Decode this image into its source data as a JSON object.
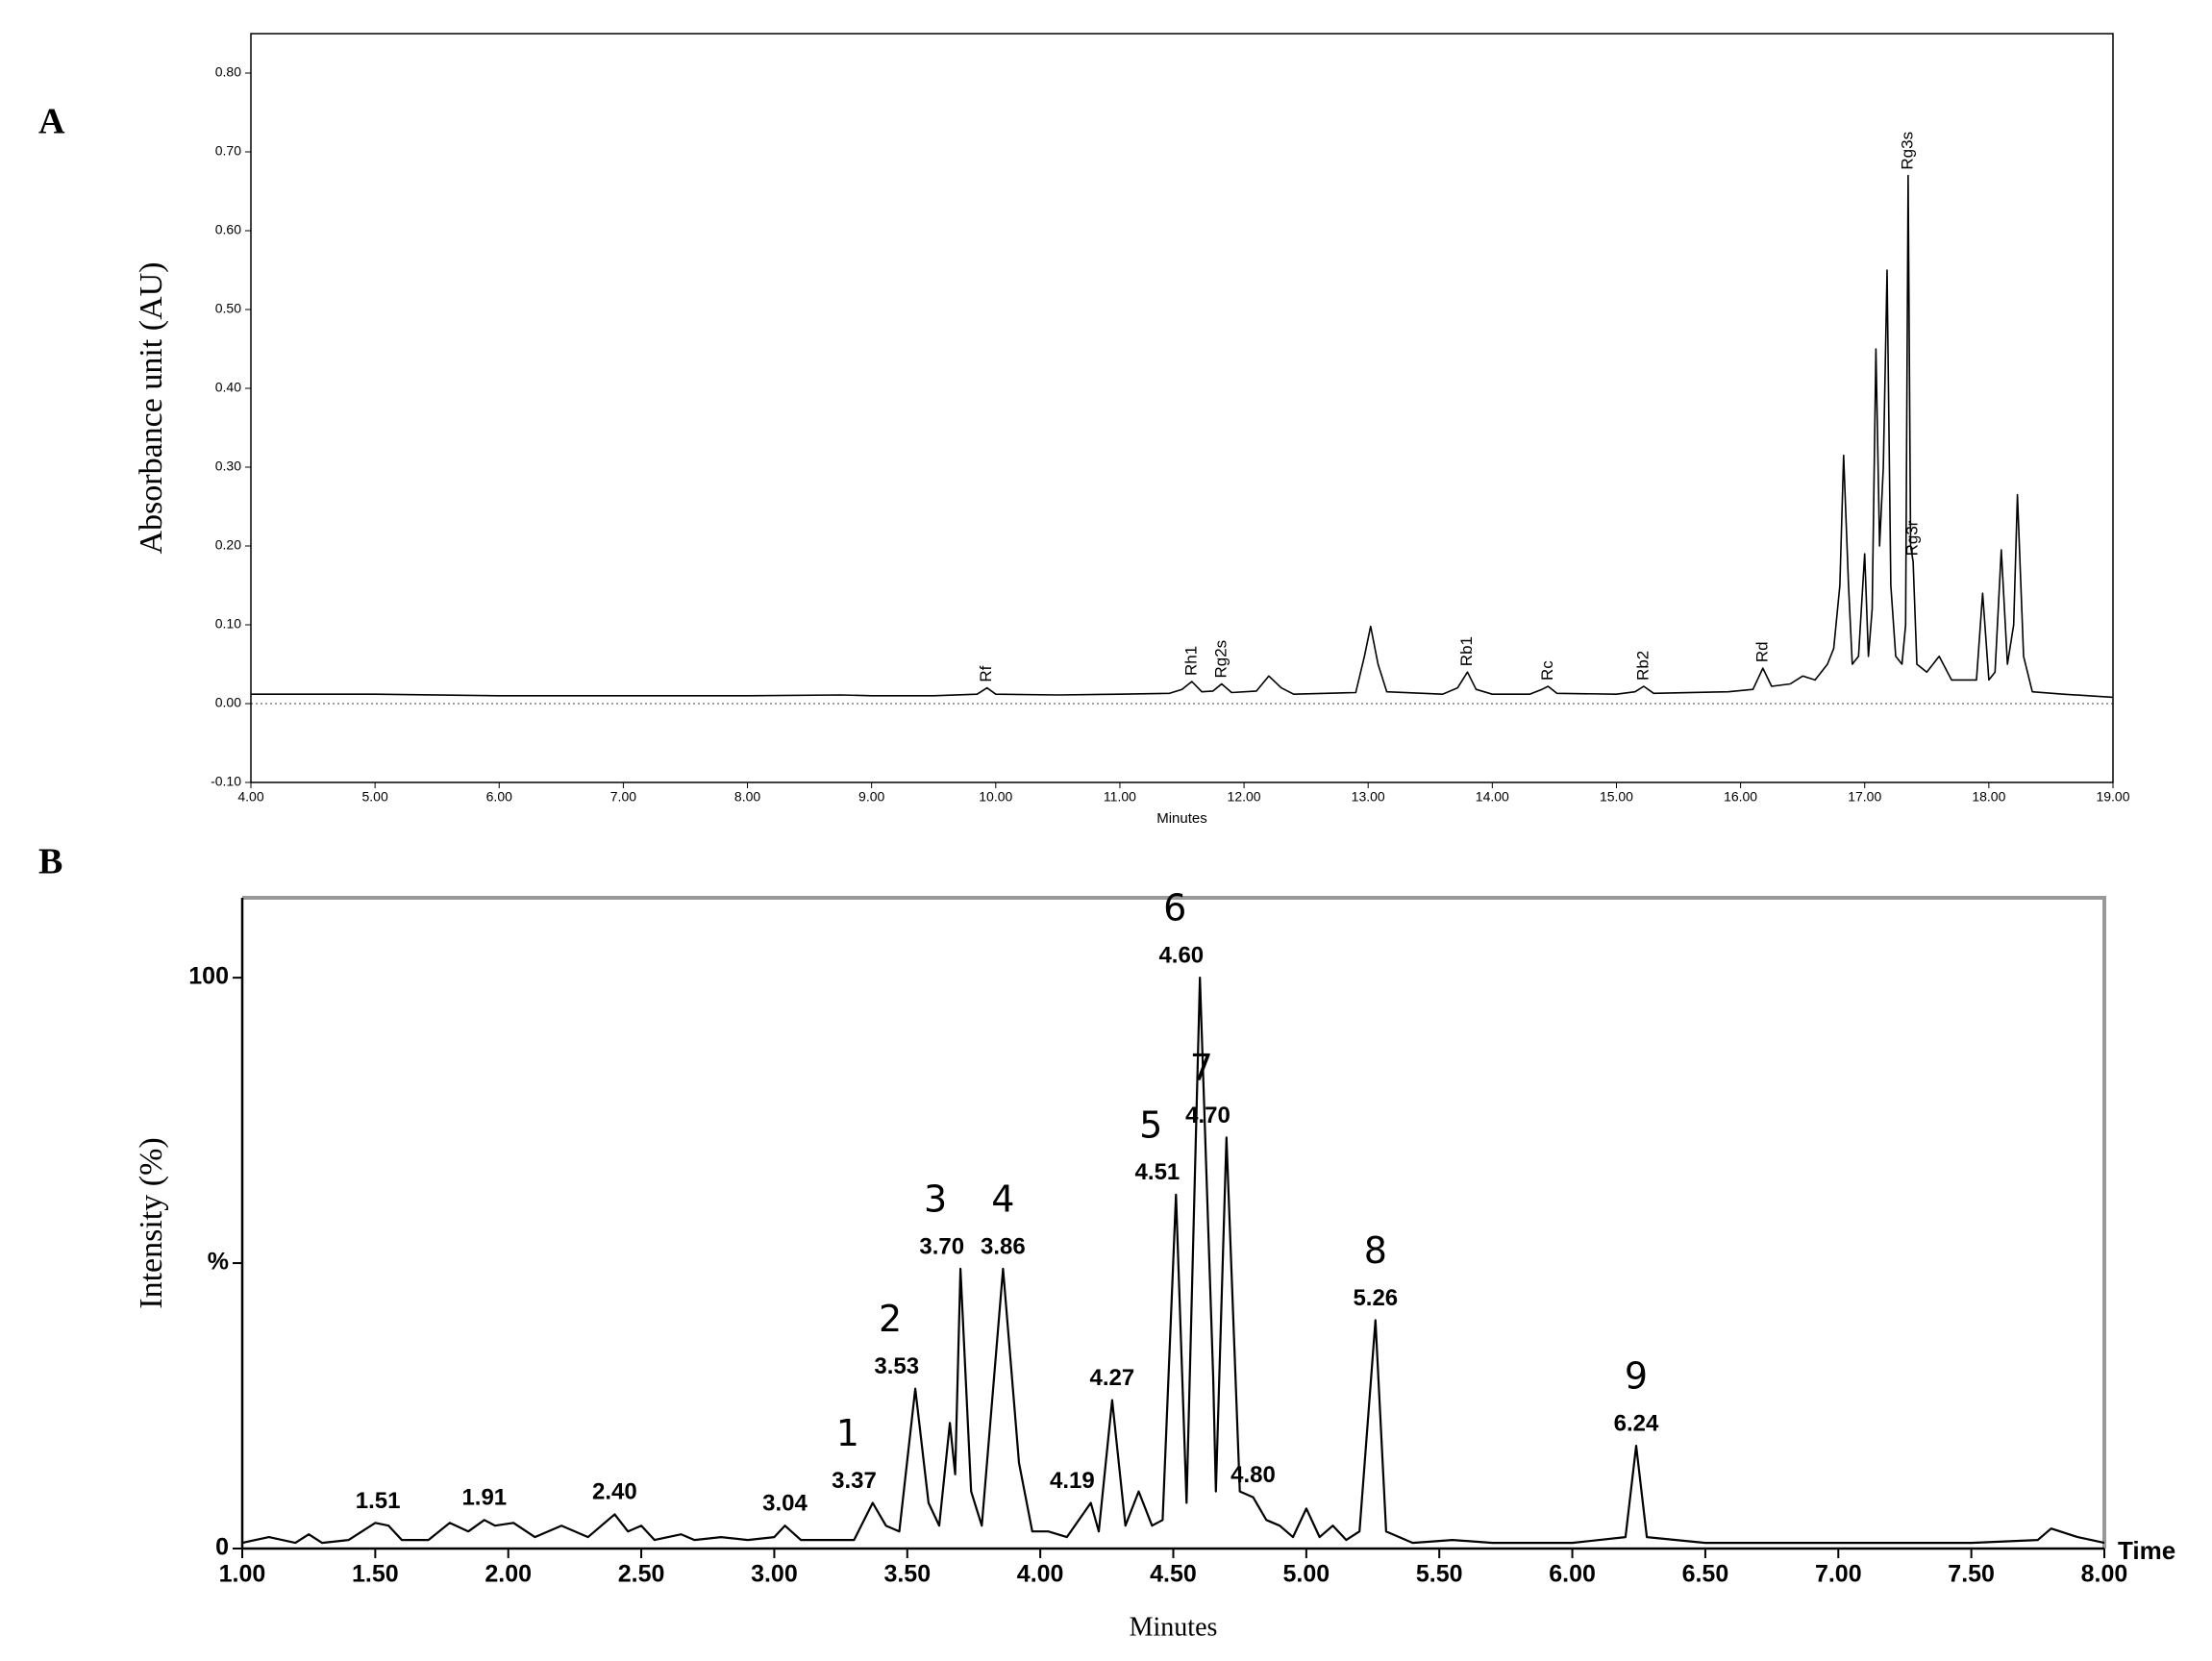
{
  "chart_data": [
    {
      "type": "line",
      "panel_label": "A",
      "xlabel": "Minutes",
      "ylabel": "Absorbance unit (AU)",
      "color": "#000000",
      "xlim": [
        4,
        19
      ],
      "ylim": [
        -0.1,
        0.85
      ],
      "xticks": [
        {
          "value": 4,
          "label": "4.00"
        },
        {
          "value": 5,
          "label": "5.00"
        },
        {
          "value": 6,
          "label": "6.00"
        },
        {
          "value": 7,
          "label": "7.00"
        },
        {
          "value": 8,
          "label": "8.00"
        },
        {
          "value": 9,
          "label": "9.00"
        },
        {
          "value": 10,
          "label": "10.00"
        },
        {
          "value": 11,
          "label": "11.00"
        },
        {
          "value": 12,
          "label": "12.00"
        },
        {
          "value": 13,
          "label": "13.00"
        },
        {
          "value": 14,
          "label": "14.00"
        },
        {
          "value": 15,
          "label": "15.00"
        },
        {
          "value": 16,
          "label": "16.00"
        },
        {
          "value": 17,
          "label": "17.00"
        },
        {
          "value": 18,
          "label": "18.00"
        },
        {
          "value": 19,
          "label": "19.00"
        }
      ],
      "yticks": [
        {
          "value": -0.1,
          "label": "-0.10"
        },
        {
          "value": 0,
          "label": "0.00"
        },
        {
          "value": 0.1,
          "label": "0.10"
        },
        {
          "value": 0.2,
          "label": "0.20"
        },
        {
          "value": 0.3,
          "label": "0.30"
        },
        {
          "value": 0.4,
          "label": "0.40"
        },
        {
          "value": 0.5,
          "label": "0.50"
        },
        {
          "value": 0.6,
          "label": "0.60"
        },
        {
          "value": 0.7,
          "label": "0.70"
        },
        {
          "value": 0.8,
          "label": "0.80"
        }
      ],
      "x": [
        4.0,
        5.0,
        6.0,
        7.0,
        8.0,
        8.75,
        9.0,
        9.5,
        9.85,
        9.93,
        10.0,
        10.5,
        11.0,
        11.4,
        11.5,
        11.58,
        11.66,
        11.75,
        11.82,
        11.9,
        12.1,
        12.2,
        12.3,
        12.4,
        12.9,
        12.97,
        13.02,
        13.08,
        13.15,
        13.6,
        13.72,
        13.8,
        13.87,
        14.0,
        14.3,
        14.4,
        14.45,
        14.52,
        15.0,
        15.15,
        15.22,
        15.3,
        15.9,
        16.1,
        16.18,
        16.25,
        16.4,
        16.5,
        16.6,
        16.7,
        16.75,
        16.8,
        16.83,
        16.87,
        16.9,
        16.95,
        17.0,
        17.03,
        17.06,
        17.09,
        17.12,
        17.15,
        17.18,
        17.21,
        17.25,
        17.3,
        17.33,
        17.35,
        17.37,
        17.39,
        17.42,
        17.5,
        17.6,
        17.7,
        17.9,
        17.95,
        18.0,
        18.05,
        18.1,
        18.15,
        18.2,
        18.23,
        18.28,
        18.35,
        18.6,
        19.0
      ],
      "values": [
        0.012,
        0.012,
        0.01,
        0.01,
        0.01,
        0.011,
        0.01,
        0.01,
        0.012,
        0.02,
        0.012,
        0.011,
        0.012,
        0.013,
        0.018,
        0.028,
        0.015,
        0.016,
        0.025,
        0.014,
        0.016,
        0.035,
        0.02,
        0.012,
        0.014,
        0.06,
        0.098,
        0.05,
        0.015,
        0.012,
        0.02,
        0.04,
        0.018,
        0.012,
        0.012,
        0.018,
        0.022,
        0.013,
        0.012,
        0.015,
        0.022,
        0.013,
        0.015,
        0.018,
        0.045,
        0.022,
        0.025,
        0.035,
        0.03,
        0.05,
        0.07,
        0.15,
        0.315,
        0.15,
        0.05,
        0.06,
        0.19,
        0.06,
        0.12,
        0.45,
        0.2,
        0.3,
        0.55,
        0.15,
        0.06,
        0.05,
        0.1,
        0.67,
        0.2,
        0.18,
        0.05,
        0.04,
        0.06,
        0.03,
        0.03,
        0.14,
        0.03,
        0.04,
        0.195,
        0.05,
        0.1,
        0.265,
        0.06,
        0.015,
        0.012,
        0.008
      ],
      "annotations": [
        {
          "value": 9.93,
          "label": "Rf"
        },
        {
          "value": 11.58,
          "label": "Rh1"
        },
        {
          "value": 11.82,
          "label": "Rg2s"
        },
        {
          "value": 13.8,
          "label": "Rb1"
        },
        {
          "value": 14.45,
          "label": "Rc"
        },
        {
          "value": 15.22,
          "label": "Rb2"
        },
        {
          "value": 16.18,
          "label": "Rd"
        },
        {
          "value": 17.35,
          "label": "Rg3s"
        },
        {
          "value": 17.39,
          "label": "Rg3r"
        }
      ]
    },
    {
      "type": "line",
      "panel_label": "B",
      "xlabel": "Minutes",
      "ylabel": "Intensity (%)",
      "x_end_label": "Time",
      "color": "#000000",
      "xlim": [
        1,
        8
      ],
      "ylim": [
        0,
        114
      ],
      "xticks": [
        {
          "value": 1,
          "label": "1.00"
        },
        {
          "value": 1.5,
          "label": "1.50"
        },
        {
          "value": 2,
          "label": "2.00"
        },
        {
          "value": 2.5,
          "label": "2.50"
        },
        {
          "value": 3,
          "label": "3.00"
        },
        {
          "value": 3.5,
          "label": "3.50"
        },
        {
          "value": 4,
          "label": "4.00"
        },
        {
          "value": 4.5,
          "label": "4.50"
        },
        {
          "value": 5,
          "label": "5.00"
        },
        {
          "value": 5.5,
          "label": "5.50"
        },
        {
          "value": 6,
          "label": "6.00"
        },
        {
          "value": 6.5,
          "label": "6.50"
        },
        {
          "value": 7,
          "label": "7.00"
        },
        {
          "value": 7.5,
          "label": "7.50"
        },
        {
          "value": 8,
          "label": "8.00"
        }
      ],
      "yticks": [
        0,
        {
          "value": 50,
          "label": "%"
        },
        100
      ],
      "x": [
        1.0,
        1.1,
        1.2,
        1.25,
        1.3,
        1.4,
        1.5,
        1.55,
        1.6,
        1.7,
        1.78,
        1.85,
        1.91,
        1.95,
        2.02,
        2.1,
        2.2,
        2.3,
        2.4,
        2.45,
        2.5,
        2.55,
        2.65,
        2.7,
        2.8,
        2.9,
        3.0,
        3.04,
        3.1,
        3.2,
        3.3,
        3.37,
        3.42,
        3.47,
        3.53,
        3.58,
        3.62,
        3.66,
        3.68,
        3.7,
        3.74,
        3.78,
        3.86,
        3.92,
        3.97,
        4.03,
        4.1,
        4.19,
        4.22,
        4.27,
        4.32,
        4.37,
        4.42,
        4.46,
        4.51,
        4.55,
        4.6,
        4.65,
        4.66,
        4.7,
        4.75,
        4.8,
        4.85,
        4.9,
        4.95,
        5.0,
        5.05,
        5.1,
        5.15,
        5.2,
        5.26,
        5.3,
        5.4,
        5.55,
        5.7,
        6.0,
        6.2,
        6.24,
        6.28,
        6.5,
        7.0,
        7.5,
        7.75,
        7.8,
        7.9,
        8.0
      ],
      "values": [
        1,
        2,
        1,
        2.5,
        1,
        1.5,
        4.5,
        4,
        1.5,
        1.5,
        4.5,
        3,
        5,
        4,
        4.5,
        2,
        4,
        2,
        6,
        3,
        4,
        1.5,
        2.5,
        1.5,
        2,
        1.5,
        2,
        4,
        1.5,
        1.5,
        1.5,
        8,
        4,
        3,
        28,
        8,
        4,
        22,
        13,
        49,
        10,
        4,
        49,
        15,
        3,
        3,
        2,
        8,
        3,
        26,
        4,
        10,
        4,
        5,
        62,
        8,
        100,
        30,
        10,
        72,
        10,
        9,
        5,
        4,
        2,
        7,
        2,
        4,
        1.5,
        3,
        40,
        3,
        1,
        1.5,
        1,
        1,
        2,
        18,
        2,
        1,
        1,
        1,
        1.5,
        3.5,
        2,
        1
      ],
      "annotations": [
        {
          "value": 1.51,
          "label": "1.51"
        },
        {
          "value": 1.91,
          "label": "1.91"
        },
        {
          "value": 2.4,
          "label": "2.40"
        },
        {
          "value": 3.04,
          "label": "3.04"
        },
        {
          "value": 3.37,
          "label": "3.37",
          "peak": "1"
        },
        {
          "value": 3.53,
          "label": "3.53",
          "peak": "2"
        },
        {
          "value": 3.7,
          "label": "3.70",
          "peak": "3"
        },
        {
          "value": 3.86,
          "label": "3.86",
          "peak": "4"
        },
        {
          "value": 4.19,
          "label": "4.19"
        },
        {
          "value": 4.27,
          "label": "4.27"
        },
        {
          "value": 4.51,
          "label": "4.51",
          "peak": "5"
        },
        {
          "value": 4.6,
          "label": "4.60",
          "peak": "6"
        },
        {
          "value": 4.7,
          "label": "4.70",
          "peak": "7"
        },
        {
          "value": 4.8,
          "label": "4.80"
        },
        {
          "value": 5.26,
          "label": "5.26",
          "peak": "8"
        },
        {
          "value": 6.24,
          "label": "6.24",
          "peak": "9"
        }
      ]
    }
  ]
}
